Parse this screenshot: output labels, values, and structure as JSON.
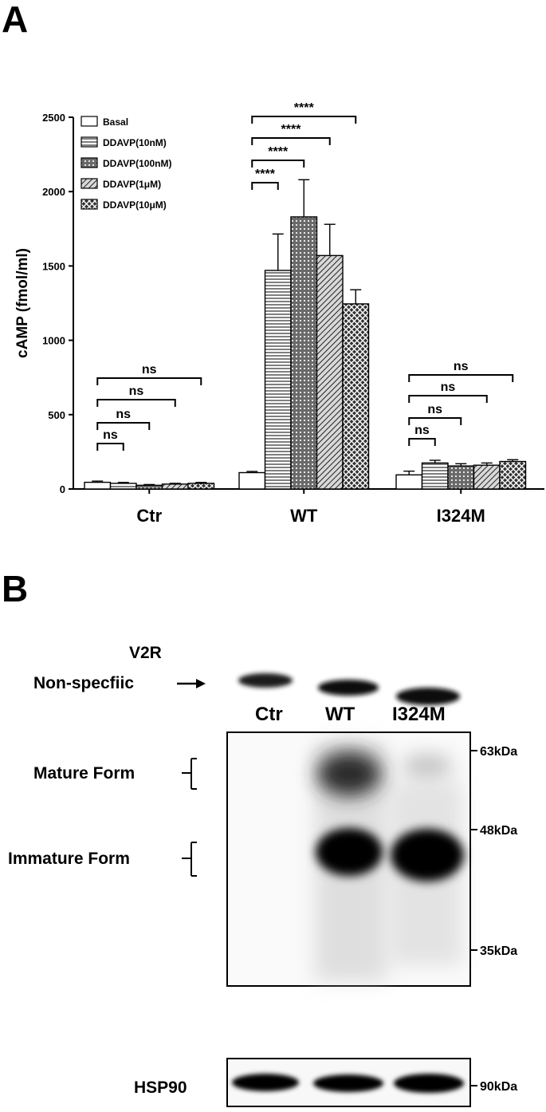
{
  "panel_a_letter": "A",
  "panel_b_letter": "B",
  "chart_data": {
    "type": "bar",
    "ylabel": "cAMP (fmol/ml)",
    "xlabel": "",
    "ylim": [
      0,
      2500
    ],
    "yticks": [
      "0",
      "500",
      "1000",
      "1500",
      "2000",
      "2500"
    ],
    "categories": [
      "Ctr",
      "WT",
      "I324M"
    ],
    "legend_position": "top-left",
    "series": [
      {
        "name": "Basal",
        "pattern": "plain",
        "values": [
          45,
          110,
          95
        ],
        "errors": [
          8,
          8,
          25
        ]
      },
      {
        "name": "DDAVP(10nM)",
        "pattern": "horizontal-lines",
        "values": [
          38,
          1470,
          175
        ],
        "errors": [
          6,
          245,
          18
        ]
      },
      {
        "name": "DDAVP(100nM)",
        "pattern": "grid",
        "values": [
          25,
          1830,
          155
        ],
        "errors": [
          5,
          250,
          15
        ]
      },
      {
        "name": "DDAVP(1μM)",
        "pattern": "diagonal-lines",
        "values": [
          33,
          1570,
          160
        ],
        "errors": [
          5,
          210,
          15
        ]
      },
      {
        "name": "DDAVP(10μM)",
        "pattern": "crosshatch",
        "values": [
          38,
          1245,
          185
        ],
        "errors": [
          6,
          95,
          12
        ]
      }
    ],
    "significance": [
      {
        "category": "Ctr",
        "label": "ns"
      },
      {
        "category": "WT",
        "label": "****"
      },
      {
        "category": "I324M",
        "label": "ns"
      }
    ]
  },
  "blot": {
    "title": "V2R",
    "lanes": [
      "Ctr",
      "WT",
      "I324M"
    ],
    "row_labels": [
      "Mature Form",
      "Non-specfiic",
      "Immature Form"
    ],
    "mw_markers": [
      "63kDa",
      "48kDa",
      "35kDa"
    ],
    "loading_label": "HSP90",
    "loading_marker": "90kDa"
  }
}
